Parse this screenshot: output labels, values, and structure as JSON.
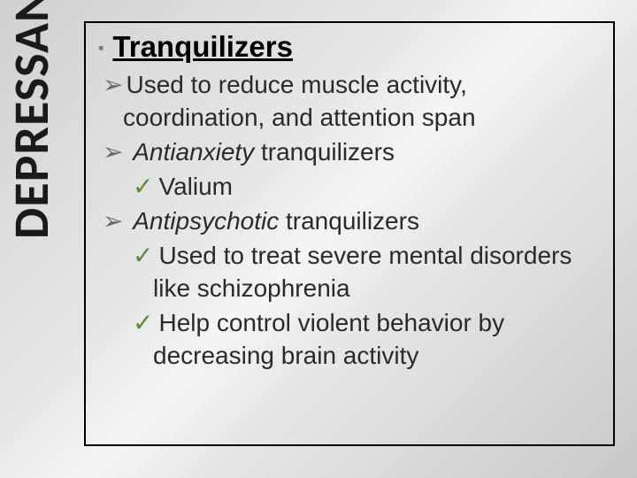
{
  "slide": {
    "background_gradient": [
      "#d0d0d0",
      "#e8e8e8",
      "#f5f5f5",
      "#e8e8e8",
      "#c8c8c8"
    ],
    "sidebar_title": "DEPRESSANTS",
    "sidebar_fontsize": 56,
    "content_border_color": "#000000",
    "heading_bullet": "▪",
    "heading": "Tranquilizers",
    "heading_fontsize": 33,
    "body_fontsize": 28,
    "arrow_glyph": "➢",
    "check_glyph": "✓",
    "arrow_color": "#6a6a6a",
    "check_color": "#5a8a3a",
    "text_color": "#2a2a2a",
    "items": {
      "l1a": "Used to reduce muscle activity, coordination, and attention span",
      "l1b_italic": "Antianxiety",
      "l1b_rest": " tranquilizers",
      "l2a": "Valium",
      "l1c_italic": "Antipsychotic",
      "l1c_rest": " tranquilizers",
      "l2b": "Used to treat severe mental disorders like schizophrenia",
      "l2c": "Help control violent behavior by decreasing brain activity"
    }
  }
}
